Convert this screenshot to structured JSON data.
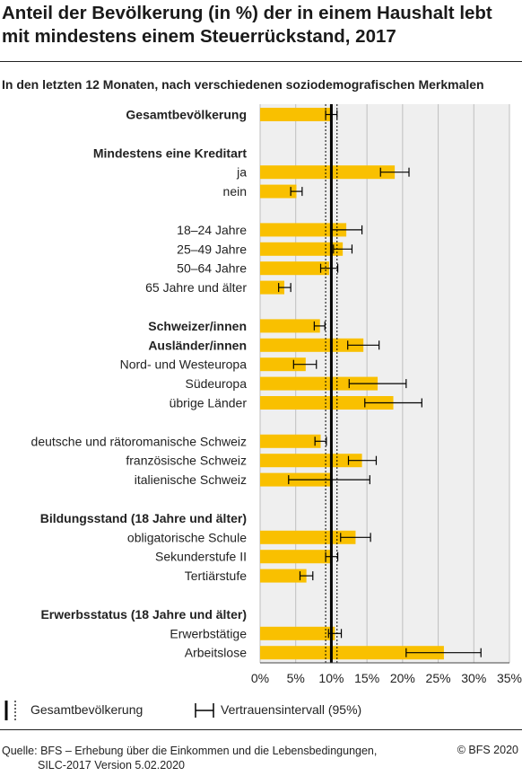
{
  "title": "Anteil der Bevölkerung (in %) der in einem Haushalt lebt mit mindestens einem Steuerrückstand, 2017",
  "subtitle": "In den letzten 12 Monaten, nach verschiedenen soziodemografischen Merkmalen",
  "legend": {
    "total_label": "Gesamtbevölkerung",
    "ci_label": "Vertrauensintervall (95%)"
  },
  "source": {
    "line1": "Quelle: BFS – Erhebung über die Einkommen und die Lebensbedingungen,",
    "line2": "SILC-2017 Version 5.02.2020",
    "copyright": "© BFS 2020"
  },
  "colors": {
    "bar": "#f9c000",
    "plot_bg": "#efefef",
    "grid": "#bfbfbf",
    "text": "#222222"
  },
  "chart_data": {
    "type": "bar",
    "orientation": "horizontal",
    "xlim": [
      0,
      35
    ],
    "xticks": [
      "0%",
      "5%",
      "10%",
      "15%",
      "20%",
      "25%",
      "30%",
      "35%"
    ],
    "reference": {
      "value": 10.0,
      "ci": [
        9.2,
        10.8
      ]
    },
    "rows": [
      {
        "label": "Gesamtbevölkerung",
        "bold": true,
        "value": 10.0,
        "ci": [
          9.2,
          10.8
        ]
      },
      {
        "label": ""
      },
      {
        "label": "Mindestens eine Kreditart",
        "bold": true
      },
      {
        "label": "ja",
        "value": 18.9,
        "ci": [
          16.9,
          20.9
        ]
      },
      {
        "label": "nein",
        "value": 5.1,
        "ci": [
          4.3,
          5.9
        ]
      },
      {
        "label": ""
      },
      {
        "label": "18–24 Jahre",
        "value": 12.1,
        "ci": [
          9.9,
          14.3
        ]
      },
      {
        "label": "25–49 Jahre",
        "value": 11.6,
        "ci": [
          10.3,
          12.9
        ]
      },
      {
        "label": "50–64 Jahre",
        "value": 9.7,
        "ci": [
          8.5,
          10.9
        ]
      },
      {
        "label": "65 Jahre und älter",
        "value": 3.4,
        "ci": [
          2.6,
          4.3
        ]
      },
      {
        "label": ""
      },
      {
        "label": "Schweizer/innen",
        "bold": true,
        "value": 8.4,
        "ci": [
          7.6,
          9.1
        ]
      },
      {
        "label": "Ausländer/innen",
        "bold": true,
        "value": 14.5,
        "ci": [
          12.3,
          16.7
        ]
      },
      {
        "label": "Nord- und Westeuropa",
        "value": 6.4,
        "ci": [
          4.7,
          7.9
        ]
      },
      {
        "label": "Südeuropa",
        "value": 16.5,
        "ci": [
          12.5,
          20.5
        ]
      },
      {
        "label": "übrige Länder",
        "value": 18.7,
        "ci": [
          14.7,
          22.7
        ]
      },
      {
        "label": ""
      },
      {
        "label": "deutsche und rätoromanische Schweiz",
        "value": 8.5,
        "ci": [
          7.7,
          9.3
        ]
      },
      {
        "label": "französische Schweiz",
        "value": 14.3,
        "ci": [
          12.4,
          16.3
        ]
      },
      {
        "label": "italienische Schweiz",
        "value": 9.9,
        "ci": [
          4.0,
          15.4
        ]
      },
      {
        "label": ""
      },
      {
        "label": "Bildungsstand (18 Jahre und älter)",
        "bold": true
      },
      {
        "label": "obligatorische Schule",
        "value": 13.4,
        "ci": [
          11.3,
          15.5
        ]
      },
      {
        "label": "Sekunderstufe II",
        "value": 10.0,
        "ci": [
          9.2,
          10.9
        ]
      },
      {
        "label": "Tertiärstufe",
        "value": 6.5,
        "ci": [
          5.6,
          7.4
        ]
      },
      {
        "label": ""
      },
      {
        "label": "Erwerbsstatus (18 Jahre und älter)",
        "bold": true
      },
      {
        "label": "Erwerbstätige",
        "value": 10.5,
        "ci": [
          9.6,
          11.4
        ]
      },
      {
        "label": "Arbeitslose",
        "value": 25.8,
        "ci": [
          20.5,
          31.0
        ]
      }
    ]
  }
}
